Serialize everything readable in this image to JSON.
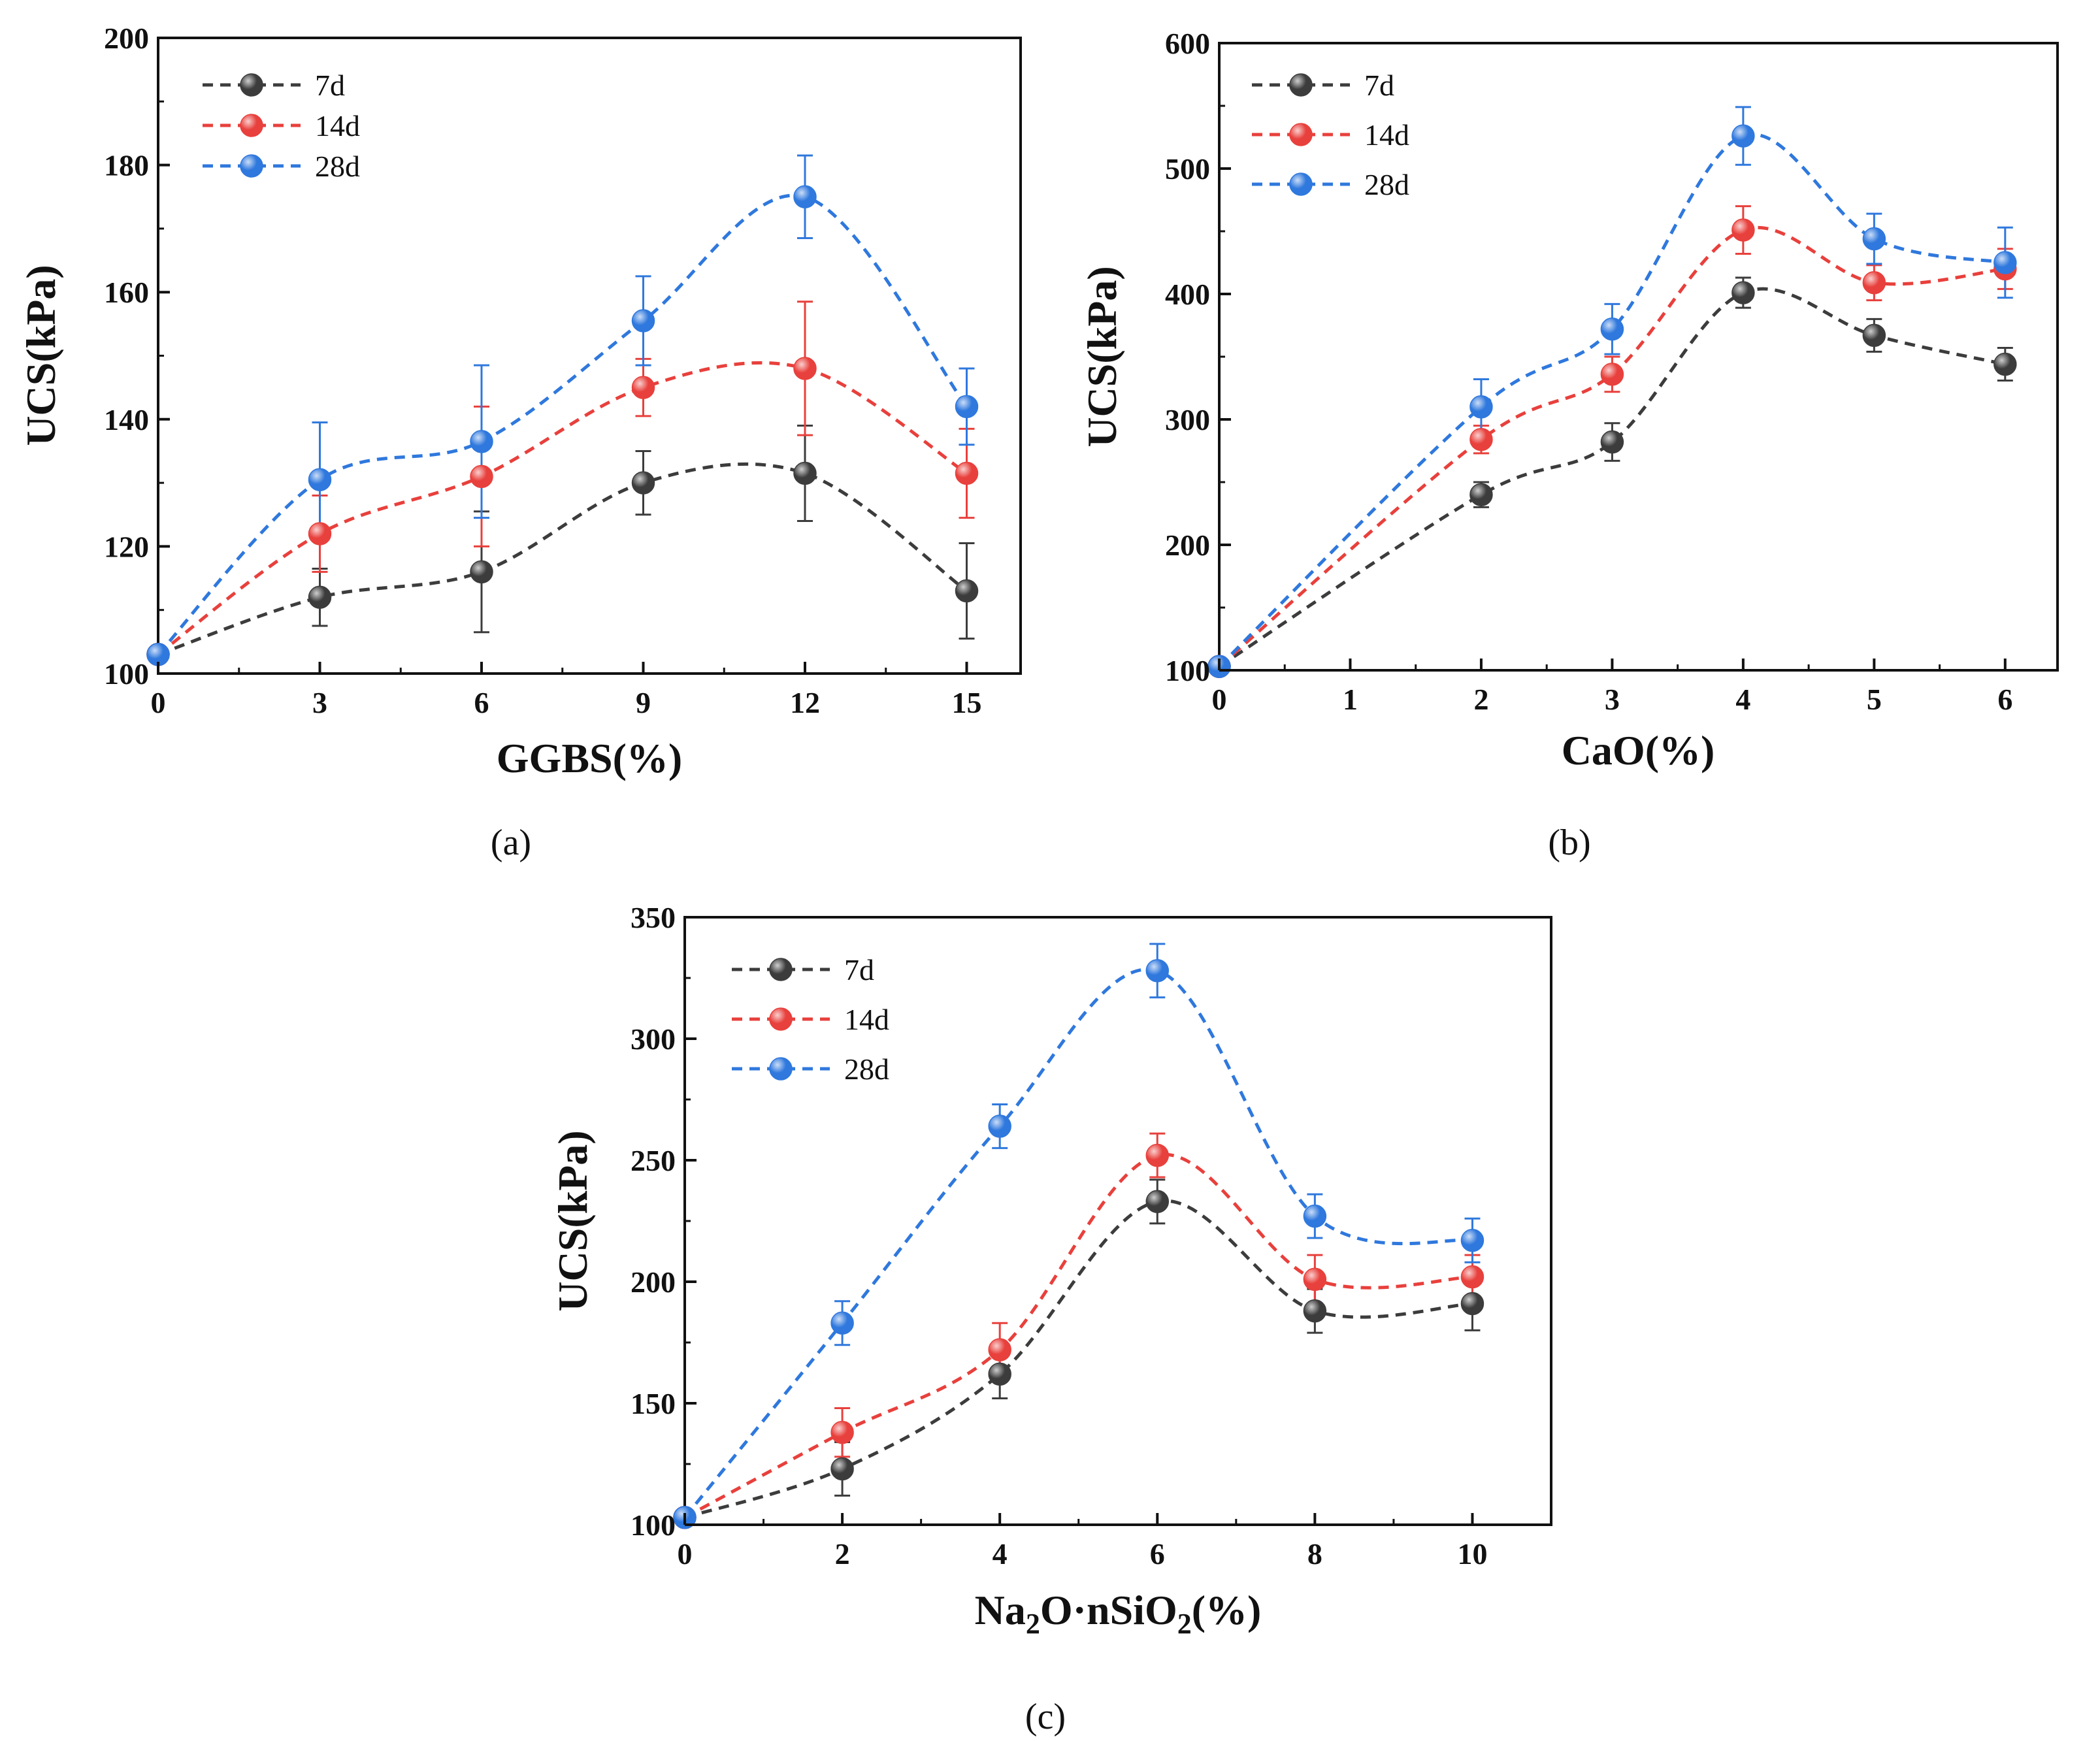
{
  "colors": {
    "7d": "#3c3c3c",
    "14d": "#e8403c",
    "28d": "#2f78dd",
    "axis": "#111111"
  },
  "chart_data": [
    {
      "type": "line",
      "panel_label": "(a)",
      "xlabel": "GGBS(%)",
      "ylabel": "UCS(kPa)",
      "xlim": [
        0,
        16
      ],
      "ylim": [
        100,
        200
      ],
      "xticks": [
        0,
        3,
        6,
        9,
        12,
        15
      ],
      "yticks": [
        100,
        120,
        140,
        160,
        180,
        200
      ],
      "legend": "top-left",
      "grid": false,
      "x": [
        0,
        3,
        6,
        9,
        12,
        15
      ],
      "series": [
        {
          "name": "7d",
          "color": "#3c3c3c",
          "values": [
            103,
            112,
            116,
            130,
            131.5,
            113
          ],
          "errors": [
            0,
            4.5,
            9.5,
            5,
            7.5,
            7.5
          ]
        },
        {
          "name": "14d",
          "color": "#e8403c",
          "values": [
            103,
            122,
            131,
            145,
            148,
            131.5
          ],
          "errors": [
            0,
            6,
            11,
            4.5,
            10.5,
            7
          ]
        },
        {
          "name": "28d",
          "color": "#2f78dd",
          "values": [
            103,
            130.5,
            136.5,
            155.5,
            175,
            142
          ],
          "errors": [
            0,
            9,
            12,
            7,
            6.5,
            6
          ]
        }
      ]
    },
    {
      "type": "line",
      "panel_label": "(b)",
      "xlabel": "CaO(%)",
      "ylabel": "UCS(kPa)",
      "xlim": [
        0,
        6.4
      ],
      "ylim": [
        100,
        600
      ],
      "xticks": [
        0,
        1,
        2,
        3,
        4,
        5,
        6
      ],
      "yticks": [
        100,
        200,
        300,
        400,
        500,
        600
      ],
      "legend": "top-left",
      "grid": false,
      "x": [
        0,
        2,
        3,
        4,
        5,
        6
      ],
      "series": [
        {
          "name": "7d",
          "color": "#3c3c3c",
          "values": [
            103,
            240,
            282,
            401,
            367,
            344
          ],
          "errors": [
            0,
            10,
            15,
            12,
            13,
            13
          ]
        },
        {
          "name": "14d",
          "color": "#e8403c",
          "values": [
            103,
            284,
            336,
            451,
            409,
            420
          ],
          "errors": [
            0,
            11,
            14,
            19,
            14,
            16
          ]
        },
        {
          "name": "28d",
          "color": "#2f78dd",
          "values": [
            103,
            310,
            372,
            526,
            444,
            425
          ],
          "errors": [
            0,
            22,
            20,
            23,
            20,
            28
          ]
        }
      ]
    },
    {
      "type": "line",
      "panel_label": "(c)",
      "xlabel_main": "Na",
      "xlabel_sub1": "2",
      "xlabel_mid": "O·nSiO",
      "xlabel_sub2": "2",
      "xlabel_end": "(%)",
      "ylabel": "UCS(kPa)",
      "xlim": [
        0,
        11
      ],
      "ylim": [
        100,
        350
      ],
      "xticks": [
        0,
        2,
        4,
        6,
        8,
        10
      ],
      "yticks": [
        100,
        150,
        200,
        250,
        300,
        350
      ],
      "legend": "top-left",
      "grid": false,
      "x": [
        0,
        2,
        4,
        6,
        8,
        10
      ],
      "series": [
        {
          "name": "7d",
          "color": "#3c3c3c",
          "values": [
            103,
            123,
            162,
            233,
            188,
            191
          ],
          "errors": [
            0,
            11,
            10,
            9,
            9,
            11
          ]
        },
        {
          "name": "14d",
          "color": "#e8403c",
          "values": [
            103,
            138,
            172,
            252,
            201,
            202
          ],
          "errors": [
            0,
            10,
            11,
            9,
            10,
            9
          ]
        },
        {
          "name": "28d",
          "color": "#2f78dd",
          "values": [
            103,
            183,
            264,
            328,
            227,
            217
          ],
          "errors": [
            0,
            9,
            9,
            11,
            9,
            9
          ]
        }
      ]
    }
  ]
}
